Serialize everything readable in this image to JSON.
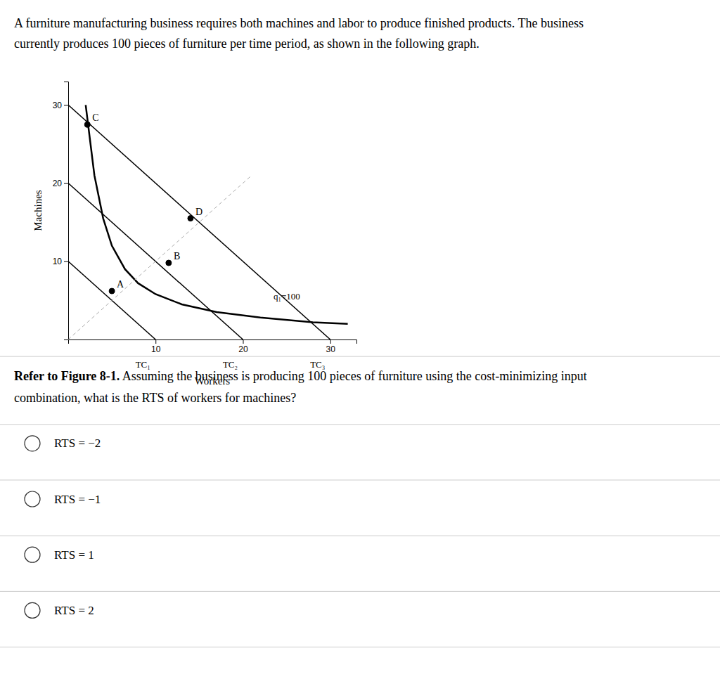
{
  "intro": [
    "A furniture manufacturing business requires both machines and labor to produce finished products. The business",
    "currently produces 100 pieces of furniture per time period, as shown in the following graph."
  ],
  "question": {
    "bold": "Refer to Figure 8-1.",
    "normal": " Assuming the business is producing 100 pieces of furniture using the cost-minimizing input",
    "line2": "combination, what is the RTS of workers for machines?"
  },
  "options": [
    "RTS = −2",
    "RTS = −1",
    "RTS = 1",
    "RTS = 2"
  ],
  "chart_data": {
    "type": "line",
    "x_label": "Workers",
    "y_label": "Machines",
    "xlim": [
      0,
      33
    ],
    "ylim": [
      0,
      33
    ],
    "xticks": [
      10,
      20,
      30
    ],
    "yticks": [
      10,
      20,
      30
    ],
    "grid": false,
    "series": [
      {
        "type": "line",
        "label": "TC₁",
        "x": [
          0,
          10
        ],
        "values": [
          10,
          0
        ],
        "color": "#000000",
        "line_style": "solid"
      },
      {
        "type": "line",
        "label": "TC₂",
        "x": [
          0,
          20
        ],
        "values": [
          20,
          0
        ],
        "color": "#000000",
        "line_style": "solid"
      },
      {
        "type": "line",
        "label": "TC₃",
        "x": [
          0,
          30
        ],
        "values": [
          30,
          0
        ],
        "color": "#000000",
        "line_style": "solid"
      },
      {
        "type": "line",
        "x": [
          2.0,
          3.0,
          4.0,
          5.0,
          6.5,
          8.0,
          10.0,
          13.0,
          17.0,
          22.0,
          28.0,
          32.0
        ],
        "values": [
          30.0,
          21.0,
          15.5,
          12.0,
          9.0,
          7.2,
          5.8,
          4.5,
          3.5,
          2.8,
          2.2,
          2.0
        ],
        "color": "#000000",
        "line_style": "solid"
      },
      {
        "type": "line",
        "x": [
          0,
          21
        ],
        "values": [
          0,
          21
        ],
        "color": "#aaaaaa",
        "line_style": "dashed"
      },
      {
        "type": "scatter",
        "x": [
          5.0,
          11.5,
          2.2,
          14.0
        ],
        "values": [
          6.2,
          9.8,
          27.5,
          15.5
        ],
        "labels": [
          "A",
          "B",
          "C",
          "D"
        ],
        "color": "#000000",
        "marker": "circle"
      }
    ],
    "annotations": [
      {
        "text": "q₁=100",
        "x": 23.5,
        "y": 5.5
      }
    ]
  }
}
